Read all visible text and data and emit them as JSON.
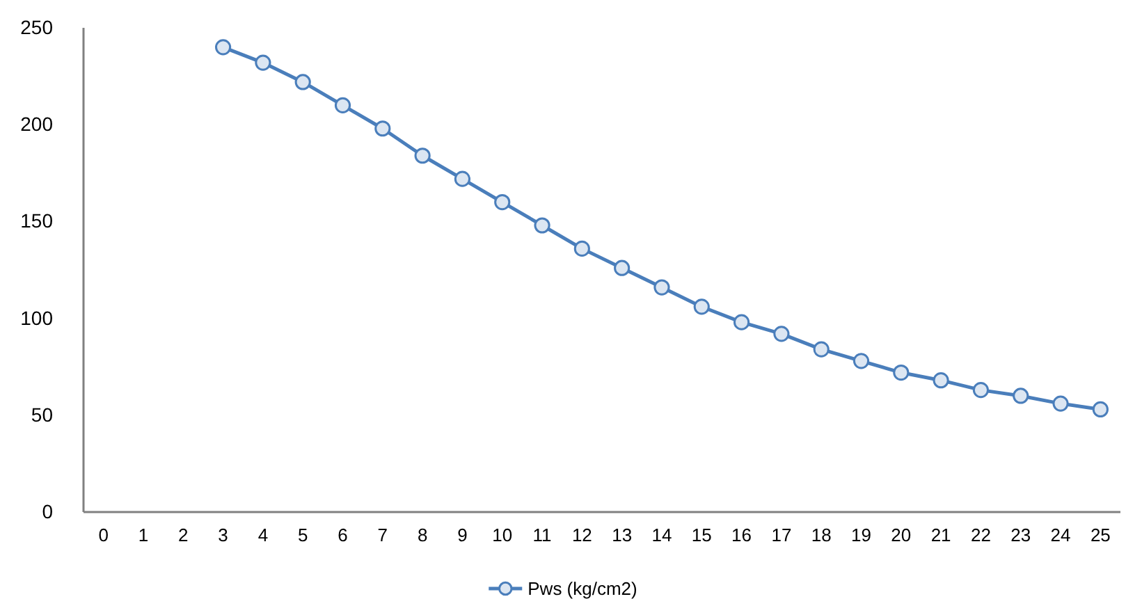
{
  "chart_data": {
    "type": "line",
    "x": [
      3,
      4,
      5,
      6,
      7,
      8,
      9,
      10,
      11,
      12,
      13,
      14,
      15,
      16,
      17,
      18,
      19,
      20,
      21,
      22,
      23,
      24,
      25
    ],
    "series": [
      {
        "name": "Pws (kg/cm2)",
        "color": "#4a7ebb",
        "values": [
          240,
          232,
          222,
          210,
          198,
          184,
          172,
          160,
          148,
          136,
          126,
          116,
          106,
          98,
          92,
          84,
          78,
          72,
          68,
          63,
          60,
          56,
          53
        ]
      }
    ],
    "xlim": [
      -0.5,
      25.5
    ],
    "xticks": [
      0,
      1,
      2,
      3,
      4,
      5,
      6,
      7,
      8,
      9,
      10,
      11,
      12,
      13,
      14,
      15,
      16,
      17,
      18,
      19,
      20,
      21,
      22,
      23,
      24,
      25
    ],
    "ylim": [
      0,
      250
    ],
    "yticks": [
      0,
      50,
      100,
      150,
      200,
      250
    ],
    "grid": false,
    "legend": "bottom",
    "marker": "circle",
    "line_style": "solid"
  }
}
